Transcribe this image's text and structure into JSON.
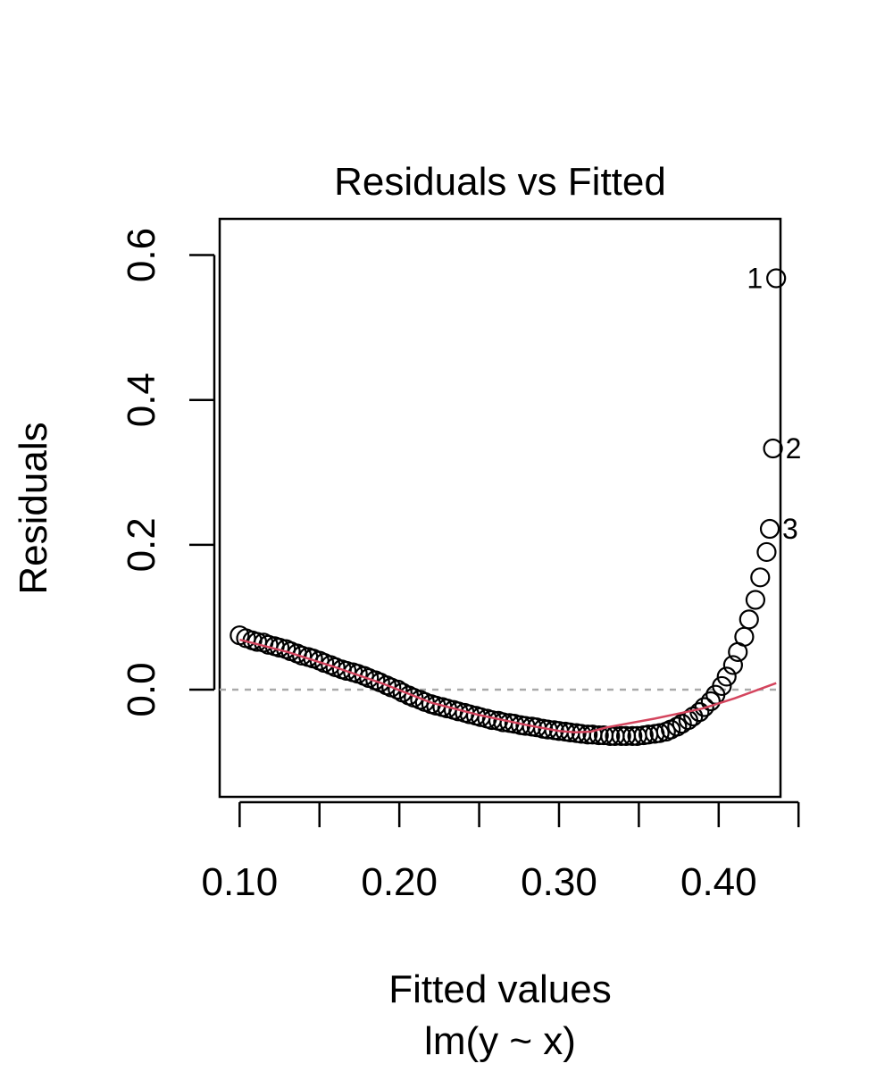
{
  "chart_data": {
    "type": "scatter",
    "title": "Residuals vs Fitted",
    "xlabel": "Fitted values",
    "xsublabel": "lm(y ~ x)",
    "ylabel": "Residuals",
    "xlim": [
      0.0875,
      0.4387
    ],
    "ylim": [
      -0.148,
      0.65
    ],
    "x_ticks": [
      0.1,
      0.15,
      0.2,
      0.25,
      0.3,
      0.35,
      0.4,
      0.45
    ],
    "x_tick_labels": [
      {
        "value": 0.1,
        "label": "0.10"
      },
      {
        "value": 0.2,
        "label": "0.20"
      },
      {
        "value": 0.3,
        "label": "0.30"
      },
      {
        "value": 0.4,
        "label": "0.40"
      }
    ],
    "y_ticks": [
      {
        "value": 0.0,
        "label": "0.0"
      },
      {
        "value": 0.2,
        "label": "0.2"
      },
      {
        "value": 0.4,
        "label": "0.4"
      },
      {
        "value": 0.6,
        "label": "0.6"
      }
    ],
    "reference_line": {
      "y": 0,
      "color": "#aaaaaa",
      "style": "dashed"
    },
    "smoother_color": "#d4455e",
    "point_color": "#000000",
    "points": [
      [
        0.1,
        0.075
      ],
      [
        0.104,
        0.071
      ],
      [
        0.108,
        0.068
      ],
      [
        0.111,
        0.066
      ],
      [
        0.115,
        0.065
      ],
      [
        0.118,
        0.062
      ],
      [
        0.122,
        0.06
      ],
      [
        0.125,
        0.058
      ],
      [
        0.129,
        0.056
      ],
      [
        0.132,
        0.053
      ],
      [
        0.136,
        0.05
      ],
      [
        0.139,
        0.047
      ],
      [
        0.143,
        0.045
      ],
      [
        0.146,
        0.043
      ],
      [
        0.15,
        0.04
      ],
      [
        0.153,
        0.037
      ],
      [
        0.157,
        0.034
      ],
      [
        0.16,
        0.031
      ],
      [
        0.164,
        0.028
      ],
      [
        0.167,
        0.026
      ],
      [
        0.171,
        0.024
      ],
      [
        0.174,
        0.022
      ],
      [
        0.178,
        0.019
      ],
      [
        0.181,
        0.016
      ],
      [
        0.185,
        0.013
      ],
      [
        0.188,
        0.01
      ],
      [
        0.192,
        0.006
      ],
      [
        0.195,
        0.003
      ],
      [
        0.199,
        0.0
      ],
      [
        0.202,
        -0.004
      ],
      [
        0.206,
        -0.008
      ],
      [
        0.209,
        -0.011
      ],
      [
        0.213,
        -0.014
      ],
      [
        0.216,
        -0.017
      ],
      [
        0.22,
        -0.02
      ],
      [
        0.223,
        -0.022
      ],
      [
        0.227,
        -0.024
      ],
      [
        0.23,
        -0.026
      ],
      [
        0.234,
        -0.028
      ],
      [
        0.237,
        -0.03
      ],
      [
        0.241,
        -0.032
      ],
      [
        0.244,
        -0.034
      ],
      [
        0.248,
        -0.036
      ],
      [
        0.251,
        -0.038
      ],
      [
        0.255,
        -0.04
      ],
      [
        0.258,
        -0.042
      ],
      [
        0.262,
        -0.043
      ],
      [
        0.265,
        -0.045
      ],
      [
        0.269,
        -0.046
      ],
      [
        0.272,
        -0.047
      ],
      [
        0.276,
        -0.049
      ],
      [
        0.279,
        -0.05
      ],
      [
        0.283,
        -0.051
      ],
      [
        0.286,
        -0.052
      ],
      [
        0.29,
        -0.054
      ],
      [
        0.293,
        -0.055
      ],
      [
        0.297,
        -0.056
      ],
      [
        0.3,
        -0.057
      ],
      [
        0.304,
        -0.058
      ],
      [
        0.307,
        -0.059
      ],
      [
        0.311,
        -0.06
      ],
      [
        0.314,
        -0.061
      ],
      [
        0.318,
        -0.062
      ],
      [
        0.321,
        -0.062
      ],
      [
        0.325,
        -0.063
      ],
      [
        0.328,
        -0.063
      ],
      [
        0.332,
        -0.064
      ],
      [
        0.335,
        -0.064
      ],
      [
        0.339,
        -0.064
      ],
      [
        0.342,
        -0.064
      ],
      [
        0.346,
        -0.064
      ],
      [
        0.349,
        -0.064
      ],
      [
        0.353,
        -0.063
      ],
      [
        0.356,
        -0.062
      ],
      [
        0.36,
        -0.061
      ],
      [
        0.363,
        -0.06
      ],
      [
        0.367,
        -0.058
      ],
      [
        0.37,
        -0.055
      ],
      [
        0.374,
        -0.051
      ],
      [
        0.377,
        -0.047
      ],
      [
        0.381,
        -0.042
      ],
      [
        0.384,
        -0.037
      ],
      [
        0.388,
        -0.031
      ],
      [
        0.391,
        -0.024
      ],
      [
        0.395,
        -0.016
      ],
      [
        0.398,
        -0.007
      ],
      [
        0.402,
        0.005
      ],
      [
        0.405,
        0.018
      ],
      [
        0.409,
        0.034
      ],
      [
        0.412,
        0.052
      ],
      [
        0.416,
        0.073
      ],
      [
        0.419,
        0.097
      ],
      [
        0.423,
        0.124
      ],
      [
        0.426,
        0.155
      ],
      [
        0.43,
        0.19
      ],
      [
        0.432,
        0.222
      ],
      [
        0.434,
        0.333
      ],
      [
        0.436,
        0.568
      ]
    ],
    "labeled_points": [
      {
        "label": "1",
        "x": 0.436,
        "y": 0.568,
        "side": "left"
      },
      {
        "label": "2",
        "x": 0.434,
        "y": 0.333,
        "side": "right"
      },
      {
        "label": "3",
        "x": 0.432,
        "y": 0.222,
        "side": "right"
      }
    ],
    "smoother": [
      [
        0.1,
        0.069
      ],
      [
        0.13,
        0.052
      ],
      [
        0.16,
        0.031
      ],
      [
        0.19,
        0.008
      ],
      [
        0.22,
        -0.018
      ],
      [
        0.25,
        -0.035
      ],
      [
        0.28,
        -0.049
      ],
      [
        0.3,
        -0.057
      ],
      [
        0.31,
        -0.059
      ],
      [
        0.32,
        -0.058
      ],
      [
        0.33,
        -0.052
      ],
      [
        0.36,
        -0.04
      ],
      [
        0.39,
        -0.026
      ],
      [
        0.41,
        -0.012
      ],
      [
        0.436,
        0.009
      ]
    ]
  }
}
